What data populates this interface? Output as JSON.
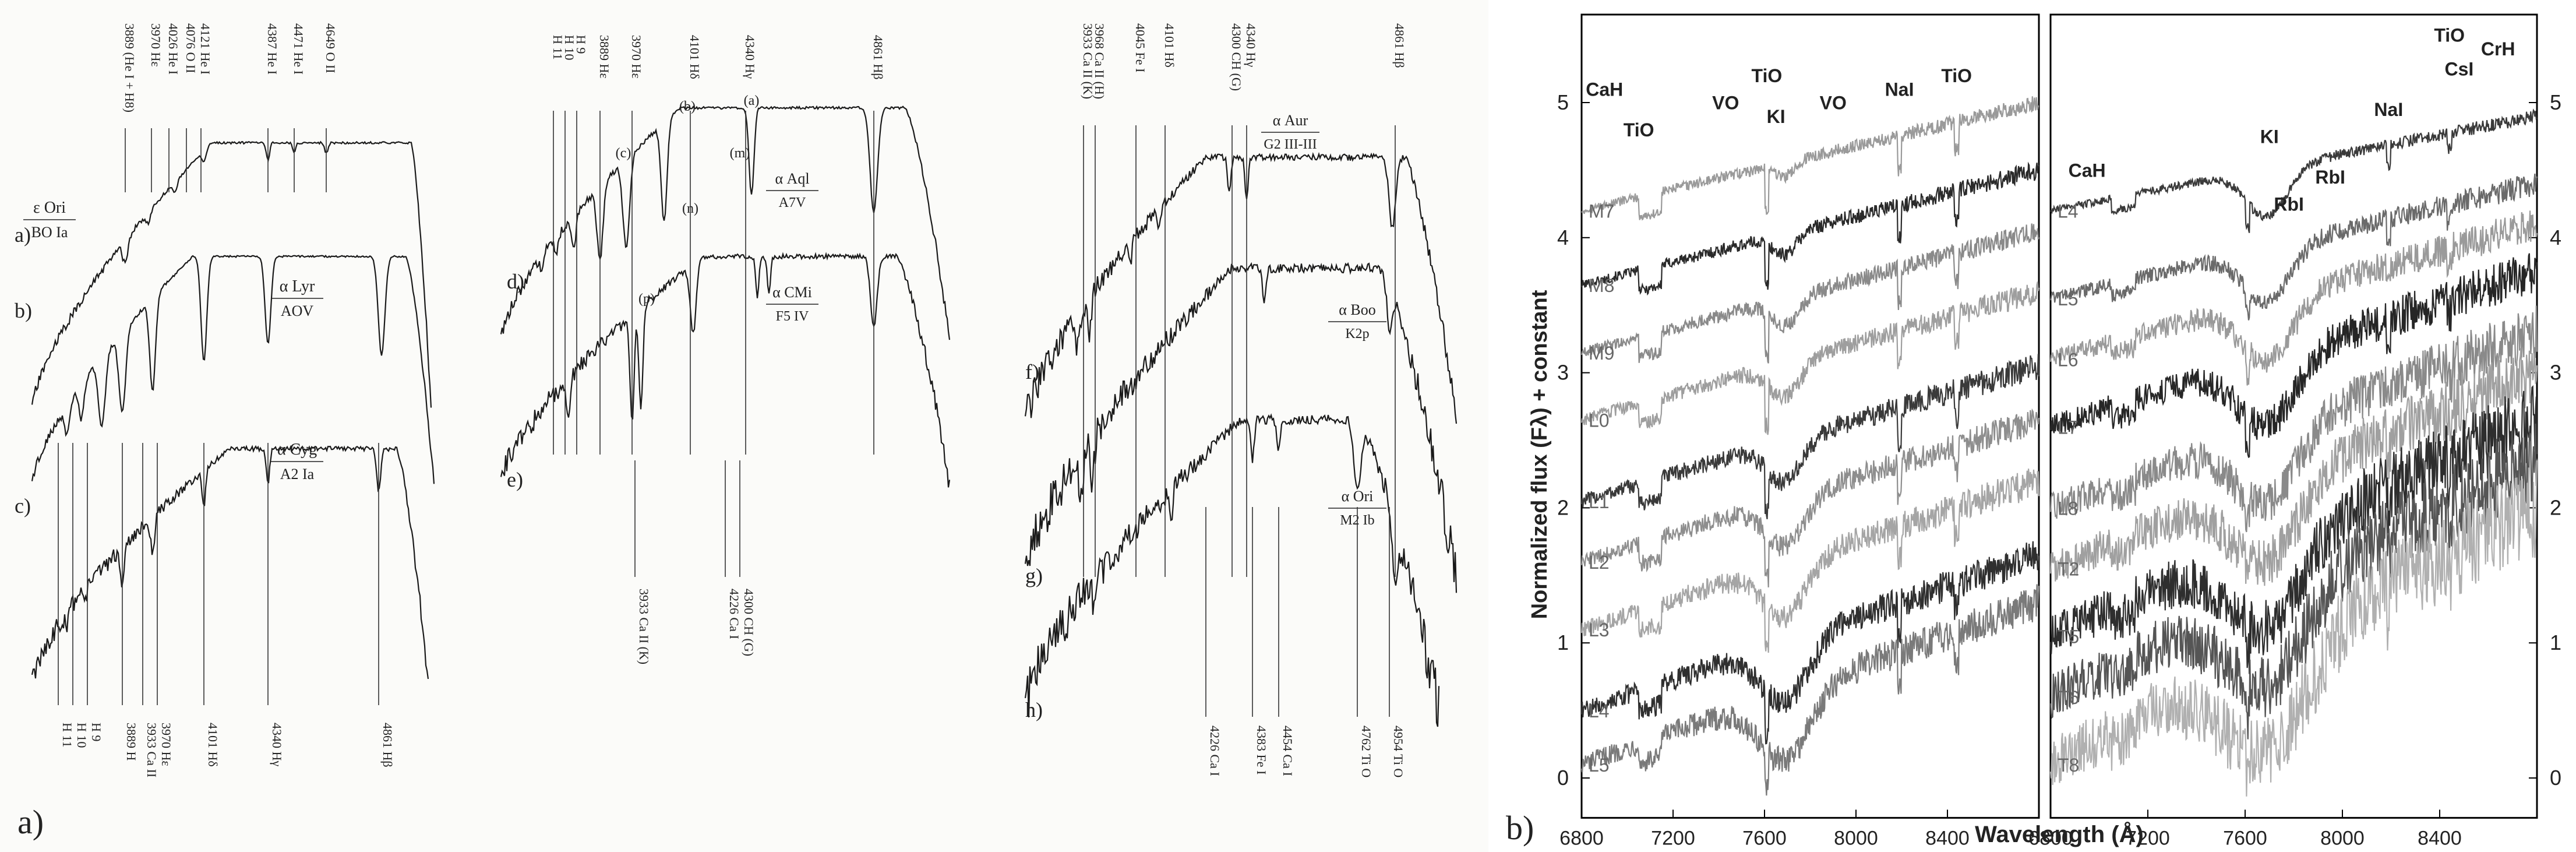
{
  "panel_labels": {
    "a": "a)",
    "b": "b)"
  },
  "chart_data": [
    {
      "type": "line",
      "title": "",
      "panel": "a",
      "sub_panels": [
        {
          "id": "a-left",
          "series": [
            {
              "name": "a)",
              "star": "ε Ori",
              "spectral_type": "BO Ia"
            },
            {
              "name": "b)",
              "star": "α Lyr",
              "spectral_type": "AOV"
            },
            {
              "name": "c)",
              "star": "α Cyg",
              "spectral_type": "A2 Ia"
            }
          ],
          "top_lines": [
            "3889 (He I + H8)",
            "3970 Hε",
            "4026 He I",
            "4076 O II",
            "4121 He I",
            "4387 He I",
            "4471 He I",
            "4649 O II"
          ],
          "bottom_lines": [
            "H 11",
            "H 10",
            "H 9",
            "3889 H",
            "3933 Ca II",
            "3970 Hε",
            "4101 Hδ",
            "4340 Hγ",
            "4861 Hβ"
          ]
        },
        {
          "id": "a-middle",
          "series": [
            {
              "name": "d)",
              "star": "α Aql",
              "spectral_type": "A7V"
            },
            {
              "name": "e)",
              "star": "α CMi",
              "spectral_type": "F5 IV"
            }
          ],
          "top_lines": [
            "H 11",
            "H 10",
            "H 9",
            "3889 Hε",
            "3970 Hε",
            "4101 Hδ",
            "4340 Hγ",
            "4861 Hβ"
          ],
          "bottom_lines": [
            "3933 Ca II (K)",
            "4226 Ca I",
            "4300 CH (G)"
          ],
          "markers": [
            "(a)",
            "(b)",
            "(c)",
            "(m)",
            "(n)",
            "(p)",
            "(b)"
          ]
        },
        {
          "id": "a-right",
          "series": [
            {
              "name": "f)",
              "star": "α Aur",
              "spectral_type": "G2 III-III"
            },
            {
              "name": "g)",
              "star": "α Boo",
              "spectral_type": "K2p"
            },
            {
              "name": "h)",
              "star": "α Ori",
              "spectral_type": "M2 Ib"
            }
          ],
          "top_lines": [
            "3933 Ca II (K)",
            "3968 Ca II (H)",
            "4045 Fe I",
            "4101 Hδ",
            "4300 CH (G)",
            "4340 Hγ",
            "4861 Hβ"
          ],
          "bottom_lines": [
            "4226 Ca I",
            "4383 Fe I",
            "4454 Ca I",
            "4762 Ti O",
            "4954 Ti O"
          ]
        }
      ]
    },
    {
      "type": "line",
      "title": "",
      "panel": "b",
      "xlabel": "Wavelength (Å)",
      "ylabel": "Normalized flux (Fλ) + constant",
      "xlim": [
        6800,
        8800
      ],
      "ylim": [
        -0.2,
        5.7
      ],
      "xticks": [
        "6800",
        "7200",
        "7600",
        "8000",
        "8400"
      ],
      "yticks": [
        "0",
        "1",
        "2",
        "3",
        "4",
        "5"
      ],
      "sub_panels": [
        {
          "id": "b-left",
          "series": [
            "M7",
            "M8",
            "M9",
            "L0",
            "L1",
            "L2",
            "L3",
            "L4",
            "L5"
          ],
          "offsets": [
            4.2,
            3.65,
            3.15,
            2.65,
            2.05,
            1.6,
            1.1,
            0.5,
            0.1
          ],
          "features": [
            "CaH",
            "TiO",
            "VO",
            "TiO",
            "KI",
            "VO",
            "NaI",
            "TiO"
          ]
        },
        {
          "id": "b-right",
          "series": [
            "L4",
            "L5",
            "L6",
            "L7",
            "L8",
            "T2",
            "T5",
            "T6",
            "T8"
          ],
          "offsets": [
            4.2,
            3.55,
            3.1,
            2.6,
            2.0,
            1.55,
            1.05,
            0.6,
            0.1
          ],
          "features": [
            "CaH",
            "KI",
            "RbI",
            "RbI",
            "NaI",
            "TiO",
            "CsI",
            "CrH"
          ]
        }
      ]
    }
  ]
}
